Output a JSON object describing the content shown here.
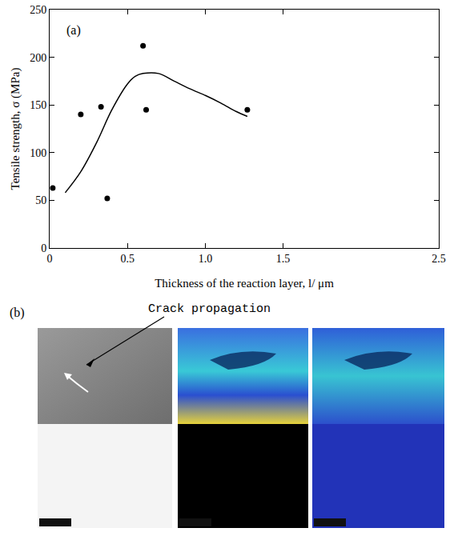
{
  "chart_data": {
    "type": "scatter",
    "panel_label": "(a)",
    "x_label": "Thickness of the reaction layer, l/ μm",
    "y_label": "Tensile strength, σ (MPa)",
    "xlim": [
      0,
      2.5
    ],
    "xticks": [
      0,
      0.5,
      {
        "value": 1.0,
        "label": "1.0"
      },
      1.5,
      2.5
    ],
    "ylim": [
      0,
      250
    ],
    "yticks": [
      0,
      50,
      100,
      150,
      200,
      250
    ],
    "grid": false,
    "series": [
      {
        "type": "scatter",
        "marker": "circle",
        "color": "#000000",
        "x": [
          0.02,
          0.2,
          0.33,
          0.37,
          0.6,
          0.62,
          1.27
        ],
        "values": [
          63,
          140,
          148,
          52,
          212,
          145,
          145
        ]
      },
      {
        "type": "line",
        "line_style": "solid",
        "color": "#000000",
        "x": [
          0.1,
          0.2,
          0.3,
          0.4,
          0.5,
          0.55,
          0.6,
          0.7,
          0.8,
          0.9,
          1.0,
          1.1,
          1.2,
          1.27
        ],
        "values": [
          58,
          80,
          110,
          145,
          172,
          180,
          183,
          183,
          175,
          167,
          160,
          152,
          143,
          138
        ]
      }
    ]
  },
  "panel_b": {
    "label": "(b)",
    "annotation": "Crack propagation"
  }
}
